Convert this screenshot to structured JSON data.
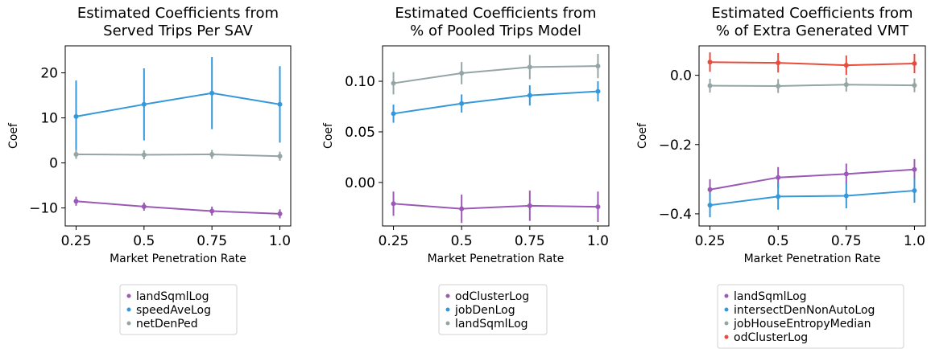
{
  "colors": {
    "purple": "#9b59b6",
    "blue": "#3498db",
    "gray": "#95a5a6",
    "red": "#e74c3c"
  },
  "chart_data": [
    {
      "type": "line",
      "title_lines": [
        "Estimated Coefficients from",
        "Served Trips Per SAV"
      ],
      "xlabel": "Market Penetration Rate",
      "ylabel": "Coef",
      "x": [
        0.25,
        0.5,
        0.75,
        1.0
      ],
      "x_tick_labels": [
        "0.25",
        "0.5",
        "0.75",
        "1.0"
      ],
      "xlim": [
        0.21,
        1.04
      ],
      "ylim": [
        -14,
        26
      ],
      "y_ticks": [
        -10,
        0,
        10,
        20
      ],
      "y_tick_labels": [
        "−10",
        "0",
        "10",
        "20"
      ],
      "series": [
        {
          "name": "landSqmlLog",
          "color": "#9b59b6",
          "values": [
            -8.5,
            -9.7,
            -10.7,
            -11.3
          ],
          "err": [
            1.0,
            0.9,
            1.0,
            1.0
          ]
        },
        {
          "name": "speedAveLog",
          "color": "#3498db",
          "values": [
            10.3,
            13.0,
            15.5,
            13.0
          ],
          "err": [
            8.0,
            8.0,
            8.0,
            8.5
          ]
        },
        {
          "name": "netDenPed",
          "color": "#95a5a6",
          "values": [
            1.9,
            1.8,
            1.9,
            1.5
          ],
          "err": [
            1.0,
            1.0,
            1.0,
            1.0
          ]
        }
      ]
    },
    {
      "type": "line",
      "title_lines": [
        "Estimated Coefficients from",
        "% of Pooled Trips Model"
      ],
      "xlabel": "Market Penetration Rate",
      "ylabel": "Coef",
      "x": [
        0.25,
        0.5,
        0.75,
        1.0
      ],
      "x_tick_labels": [
        "0.25",
        "0.5",
        "0.75",
        "1.0"
      ],
      "xlim": [
        0.21,
        1.04
      ],
      "ylim": [
        -0.043,
        0.135
      ],
      "y_ticks": [
        0.0,
        0.05,
        0.1
      ],
      "y_tick_labels": [
        "0.00",
        "0.05",
        "0.10"
      ],
      "series": [
        {
          "name": "odClusterLog",
          "color": "#9b59b6",
          "values": [
            -0.021,
            -0.026,
            -0.023,
            -0.024
          ],
          "err": [
            0.012,
            0.014,
            0.015,
            0.015
          ]
        },
        {
          "name": "jobDenLog",
          "color": "#3498db",
          "values": [
            0.068,
            0.078,
            0.086,
            0.09
          ],
          "err": [
            0.009,
            0.009,
            0.01,
            0.01
          ]
        },
        {
          "name": "landSqmlLog",
          "color": "#95a5a6",
          "values": [
            0.098,
            0.108,
            0.114,
            0.115
          ],
          "err": [
            0.011,
            0.011,
            0.012,
            0.012
          ]
        }
      ]
    },
    {
      "type": "line",
      "title_lines": [
        "Estimated Coefficients from",
        "% of Extra Generated VMT"
      ],
      "xlabel": "Market Penetration Rate",
      "ylabel": "Coef",
      "x": [
        0.25,
        0.5,
        0.75,
        1.0
      ],
      "x_tick_labels": [
        "0.25",
        "0.5",
        "0.75",
        "1.0"
      ],
      "xlim": [
        0.21,
        1.04
      ],
      "ylim": [
        -0.435,
        0.085
      ],
      "y_ticks": [
        0.0,
        -0.2,
        -0.4
      ],
      "y_tick_labels": [
        "0.0",
        "−0.2",
        "−0.4"
      ],
      "series": [
        {
          "name": "landSqmlLog",
          "color": "#9b59b6",
          "values": [
            -0.33,
            -0.295,
            -0.285,
            -0.272
          ],
          "err": [
            0.03,
            0.03,
            0.03,
            0.03
          ]
        },
        {
          "name": "intersectDenNonAutoLog",
          "color": "#3498db",
          "values": [
            -0.375,
            -0.35,
            -0.348,
            -0.333
          ],
          "err": [
            0.035,
            0.038,
            0.036,
            0.035
          ]
        },
        {
          "name": "jobHouseEntropyMedian",
          "color": "#95a5a6",
          "values": [
            -0.03,
            -0.031,
            -0.027,
            -0.029
          ],
          "err": [
            0.02,
            0.02,
            0.02,
            0.02
          ]
        },
        {
          "name": "odClusterLog",
          "color": "#e74c3c",
          "values": [
            0.038,
            0.036,
            0.029,
            0.034
          ],
          "err": [
            0.028,
            0.028,
            0.028,
            0.028
          ]
        }
      ]
    }
  ]
}
